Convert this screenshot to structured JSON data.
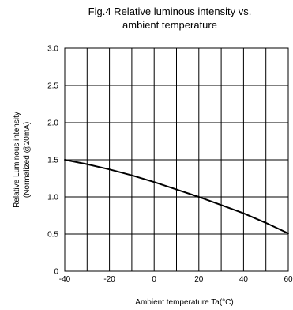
{
  "chart_data": {
    "type": "line",
    "title_line1": "Fig.4 Relative luminous intensity vs.",
    "title_line2": "ambient temperature",
    "xlabel": "Ambient temperature Ta(°C)",
    "ylabel_line1": "Relative Luminous intensity",
    "ylabel_line2": "(Normalized @20mA)",
    "xlim": [
      -40,
      60
    ],
    "ylim": [
      0,
      3.0
    ],
    "x_ticks": [
      -40,
      -20,
      0,
      20,
      40,
      60
    ],
    "x_tick_labels": [
      "-40",
      "-20",
      "0",
      "20",
      "40",
      "60"
    ],
    "y_ticks": [
      0,
      0.5,
      1.0,
      1.5,
      2.0,
      2.5,
      3.0
    ],
    "y_tick_labels": [
      "0",
      "0.5",
      "1.0",
      "1.5",
      "2.0",
      "2.5",
      "3.0"
    ],
    "x_grid_step": 10,
    "grid": true,
    "series": [
      {
        "x": [
          -40,
          -30,
          -20,
          -10,
          0,
          10,
          20,
          30,
          40,
          50,
          60
        ],
        "y": [
          1.5,
          1.44,
          1.37,
          1.29,
          1.2,
          1.1,
          1.0,
          0.89,
          0.78,
          0.65,
          0.51
        ]
      }
    ],
    "line_color": "#000000"
  }
}
